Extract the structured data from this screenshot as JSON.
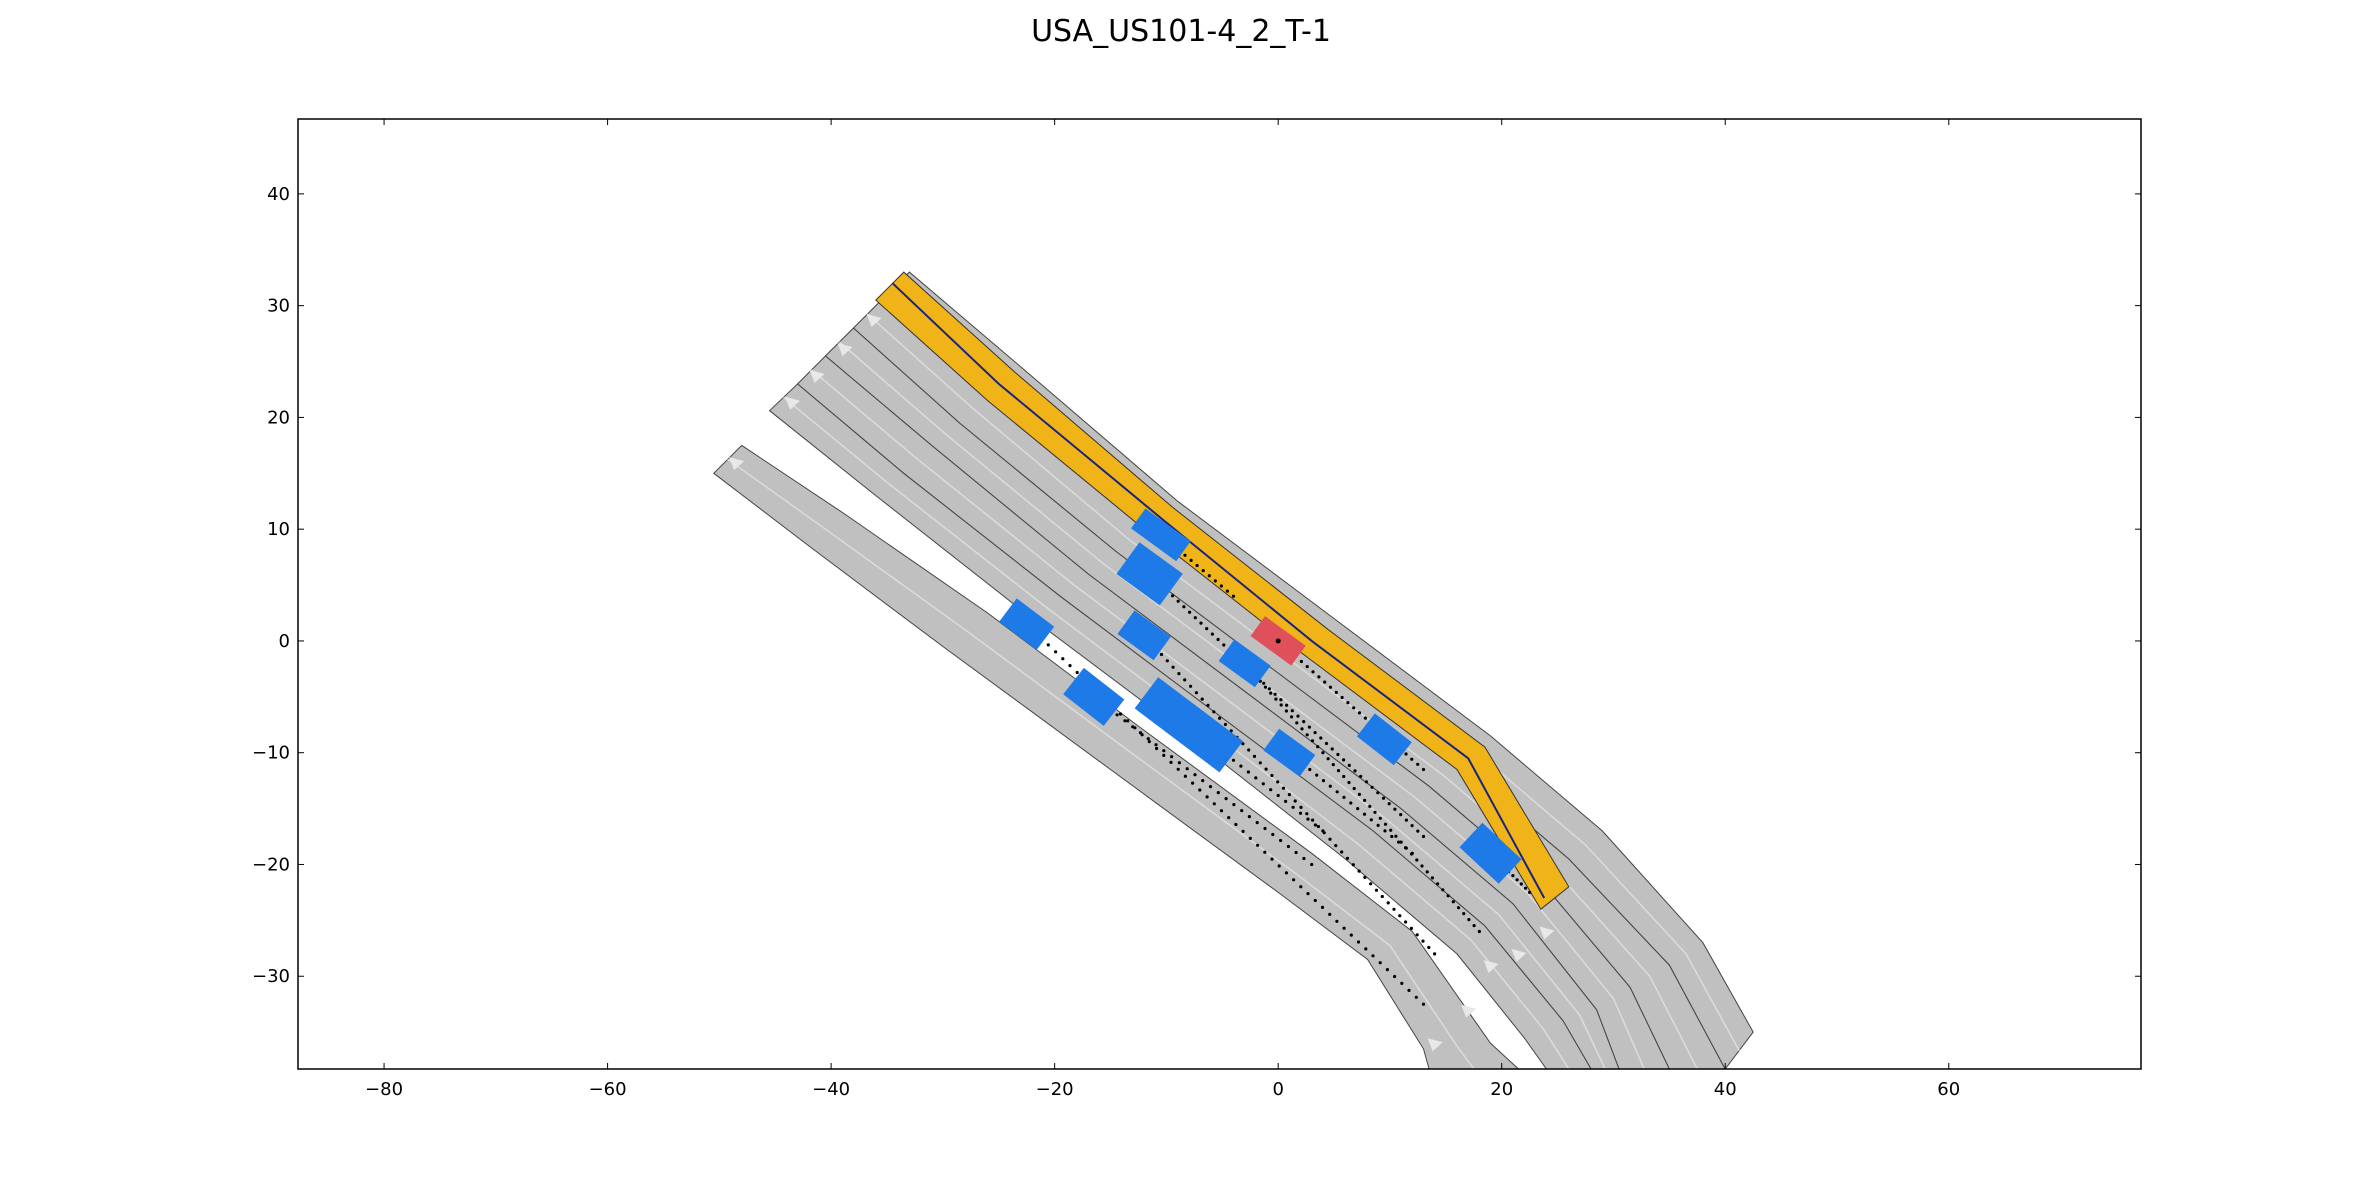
{
  "chart_data": {
    "type": "scatter",
    "title": "USA_US101-4_2_T-1",
    "xlim": [
      -87.7,
      77.2
    ],
    "ylim": [
      -38.3,
      46.7
    ],
    "xticks": [
      -80,
      -60,
      -40,
      -20,
      0,
      20,
      40,
      60
    ],
    "yticks": [
      -30,
      -20,
      -10,
      0,
      10,
      20,
      30,
      40
    ],
    "xtick_labels": [
      "−80",
      "−60",
      "−40",
      "−20",
      "0",
      "20",
      "40",
      "60"
    ],
    "ytick_labels": [
      "−30",
      "−20",
      "−10",
      "0",
      "10",
      "20",
      "30",
      "40"
    ],
    "grid": false,
    "colors": {
      "road": "#c0c0c0",
      "lane_line": "#444444",
      "center_line": "#dcdcdc",
      "highlight_lane": "#f1b418",
      "vehicle": "#1e7ae6",
      "ego_vehicle": "#e0505a",
      "trajectory": "#000000",
      "route_line": "#1a237e"
    },
    "lanes": [
      {
        "name": "lane-1",
        "left": [
          [
            -50.5,
            15.0
          ],
          [
            -42,
            8.5
          ],
          [
            -30,
            -0.5
          ],
          [
            -15,
            -11.5
          ],
          [
            0,
            -22.5
          ],
          [
            8,
            -28.5
          ],
          [
            13,
            -36.5
          ],
          [
            13.5,
            -38.3
          ]
        ],
        "right": [
          [
            -48,
            17.5
          ],
          [
            -39,
            11.5
          ],
          [
            -26,
            2.5
          ],
          [
            -12,
            -8
          ],
          [
            3,
            -19
          ],
          [
            12,
            -26
          ],
          [
            19,
            -36
          ],
          [
            21.5,
            -38.3
          ]
        ]
      },
      {
        "name": "lane-2",
        "left": [
          [
            -45.5,
            20.6
          ],
          [
            -36,
            13
          ],
          [
            -22,
            2
          ],
          [
            -8,
            -8.5
          ],
          [
            6,
            -19.5
          ],
          [
            16,
            -28
          ],
          [
            22,
            -35.5
          ],
          [
            24,
            -38.3
          ]
        ],
        "right": [
          [
            -43,
            23
          ],
          [
            -33.5,
            15
          ],
          [
            -19.5,
            4
          ],
          [
            -5.5,
            -6.5
          ],
          [
            8.5,
            -17
          ],
          [
            18.5,
            -25.5
          ],
          [
            25.5,
            -34
          ],
          [
            28,
            -38.3
          ]
        ]
      },
      {
        "name": "lane-3",
        "left": [
          [
            -43,
            23
          ],
          [
            -33.5,
            15
          ],
          [
            -19.5,
            4
          ],
          [
            -5.5,
            -6.5
          ],
          [
            8.5,
            -17
          ],
          [
            18.5,
            -25.5
          ],
          [
            25.5,
            -34
          ],
          [
            28,
            -38.3
          ]
        ],
        "right": [
          [
            -40.5,
            25.5
          ],
          [
            -31,
            17.5
          ],
          [
            -17,
            6
          ],
          [
            -3,
            -4.5
          ],
          [
            11,
            -15
          ],
          [
            21,
            -23.5
          ],
          [
            28.5,
            -33
          ],
          [
            30.5,
            -38.3
          ]
        ]
      },
      {
        "name": "lane-4",
        "left": [
          [
            -40.5,
            25.5
          ],
          [
            -31,
            17.5
          ],
          [
            -17,
            6
          ],
          [
            -3,
            -4.5
          ],
          [
            11,
            -15
          ],
          [
            21,
            -23.5
          ],
          [
            28.5,
            -33
          ],
          [
            30.5,
            -38.3
          ]
        ],
        "right": [
          [
            -38,
            28
          ],
          [
            -28.5,
            19.5
          ],
          [
            -14.5,
            8
          ],
          [
            -0.5,
            -2.5
          ],
          [
            13.5,
            -13
          ],
          [
            23.5,
            -21.5
          ],
          [
            31.5,
            -31
          ],
          [
            35,
            -38.3
          ]
        ]
      },
      {
        "name": "lane-5",
        "left": [
          [
            -38,
            28
          ],
          [
            -28.5,
            19.5
          ],
          [
            -14.5,
            8
          ],
          [
            -0.5,
            -2.5
          ],
          [
            13.5,
            -13
          ],
          [
            23.5,
            -21.5
          ],
          [
            31.5,
            -31
          ],
          [
            35,
            -38.3
          ]
        ],
        "right": [
          [
            -35.5,
            30.5
          ],
          [
            -26,
            22
          ],
          [
            -12,
            10
          ],
          [
            2,
            -0.5
          ],
          [
            16,
            -11
          ],
          [
            26,
            -19.5
          ],
          [
            35,
            -29
          ],
          [
            40,
            -38.3
          ]
        ]
      },
      {
        "name": "lane-6",
        "left": [
          [
            -35.5,
            30.5
          ],
          [
            -26,
            22
          ],
          [
            -12,
            10
          ],
          [
            2,
            -0.5
          ],
          [
            16,
            -11
          ],
          [
            26,
            -19.5
          ],
          [
            35,
            -29
          ],
          [
            40,
            -38.3
          ]
        ],
        "right": [
          [
            -33,
            33
          ],
          [
            -23,
            24.5
          ],
          [
            -9,
            12.5
          ],
          [
            5,
            2
          ],
          [
            19,
            -8.5
          ],
          [
            29,
            -17
          ],
          [
            38,
            -27
          ],
          [
            42.5,
            -35
          ]
        ]
      }
    ],
    "highlight_lane": {
      "left": [
        [
          -36,
          30.5
        ],
        [
          -26,
          21.5
        ],
        [
          -12,
          10
        ],
        [
          2,
          -1
        ],
        [
          16,
          -11.5
        ],
        [
          23.5,
          -24
        ]
      ],
      "right": [
        [
          -33.5,
          33
        ],
        [
          -23.5,
          24
        ],
        [
          -9.5,
          12
        ],
        [
          4.5,
          1
        ],
        [
          18.5,
          -9.5
        ],
        [
          26,
          -22
        ]
      ]
    },
    "route_line": [
      [
        -34.5,
        32
      ],
      [
        -25,
        23
      ],
      [
        -10.5,
        11
      ],
      [
        3,
        0
      ],
      [
        17,
        -10.5
      ],
      [
        23.8,
        -23
      ]
    ],
    "lane_arrows": [
      [
        -48.5,
        16.0
      ],
      [
        -43.5,
        21.4
      ],
      [
        -41.3,
        23.8
      ],
      [
        -38.8,
        26.2
      ],
      [
        -36.2,
        28.8
      ],
      [
        14,
        -36
      ],
      [
        17,
        -33
      ],
      [
        19,
        -29
      ],
      [
        21.5,
        -28
      ],
      [
        24,
        -26
      ]
    ],
    "vehicles": [
      {
        "x": -10.5,
        "y": 9.5,
        "angle": -36,
        "length": 5.0,
        "width": 2.2
      },
      {
        "x": -11.5,
        "y": 6.0,
        "angle": -36,
        "length": 4.8,
        "width": 3.5
      },
      {
        "x": -22.5,
        "y": 1.5,
        "angle": -37,
        "length": 4.2,
        "width": 2.6
      },
      {
        "x": -12.0,
        "y": 0.5,
        "angle": -36,
        "length": 4.0,
        "width": 2.6
      },
      {
        "x": -3.0,
        "y": -2.0,
        "angle": -36,
        "length": 4.0,
        "width": 2.4
      },
      {
        "x": -16.5,
        "y": -5.0,
        "angle": -38,
        "length": 4.6,
        "width": 3.0
      },
      {
        "x": -8.0,
        "y": -7.5,
        "angle": -37,
        "length": 9.5,
        "width": 3.5
      },
      {
        "x": 1.0,
        "y": -10.0,
        "angle": -36,
        "length": 4.0,
        "width": 2.4
      },
      {
        "x": 9.5,
        "y": -8.8,
        "angle": -38,
        "length": 4.2,
        "width": 2.6
      },
      {
        "x": 19.0,
        "y": -19.0,
        "angle": -43,
        "length": 4.8,
        "width": 3.0
      }
    ],
    "ego_vehicle": {
      "x": 0.0,
      "y": 0.0,
      "angle": -36,
      "length": 4.5,
      "width": 2.2
    },
    "trajectories": [
      {
        "from": [
          -10.5,
          9.5
        ],
        "to": [
          -4,
          4.0
        ],
        "n": 12
      },
      {
        "from": [
          -11.5,
          6.0
        ],
        "to": [
          13,
          -17.5
        ],
        "n": 48
      },
      {
        "from": [
          -22.5,
          1.5
        ],
        "to": [
          13,
          -32.5
        ],
        "n": 55
      },
      {
        "from": [
          -12.0,
          0.5
        ],
        "to": [
          14,
          -28.0
        ],
        "n": 50
      },
      {
        "from": [
          -3.0,
          -2.0
        ],
        "to": [
          18,
          -26.0
        ],
        "n": 45
      },
      {
        "from": [
          -16.5,
          -5.0
        ],
        "to": [
          3,
          -20.0
        ],
        "n": 28
      },
      {
        "from": [
          -8.0,
          -7.5
        ],
        "to": [
          4,
          -17.0
        ],
        "n": 18
      },
      {
        "from": [
          1.0,
          -10.0
        ],
        "to": [
          12,
          -19.0
        ],
        "n": 18
      },
      {
        "from": [
          0.0,
          0.0
        ],
        "to": [
          13,
          -11.5
        ],
        "n": 25
      },
      {
        "from": [
          19.5,
          -19.5
        ],
        "to": [
          22.5,
          -22.5
        ],
        "n": 8
      }
    ]
  }
}
